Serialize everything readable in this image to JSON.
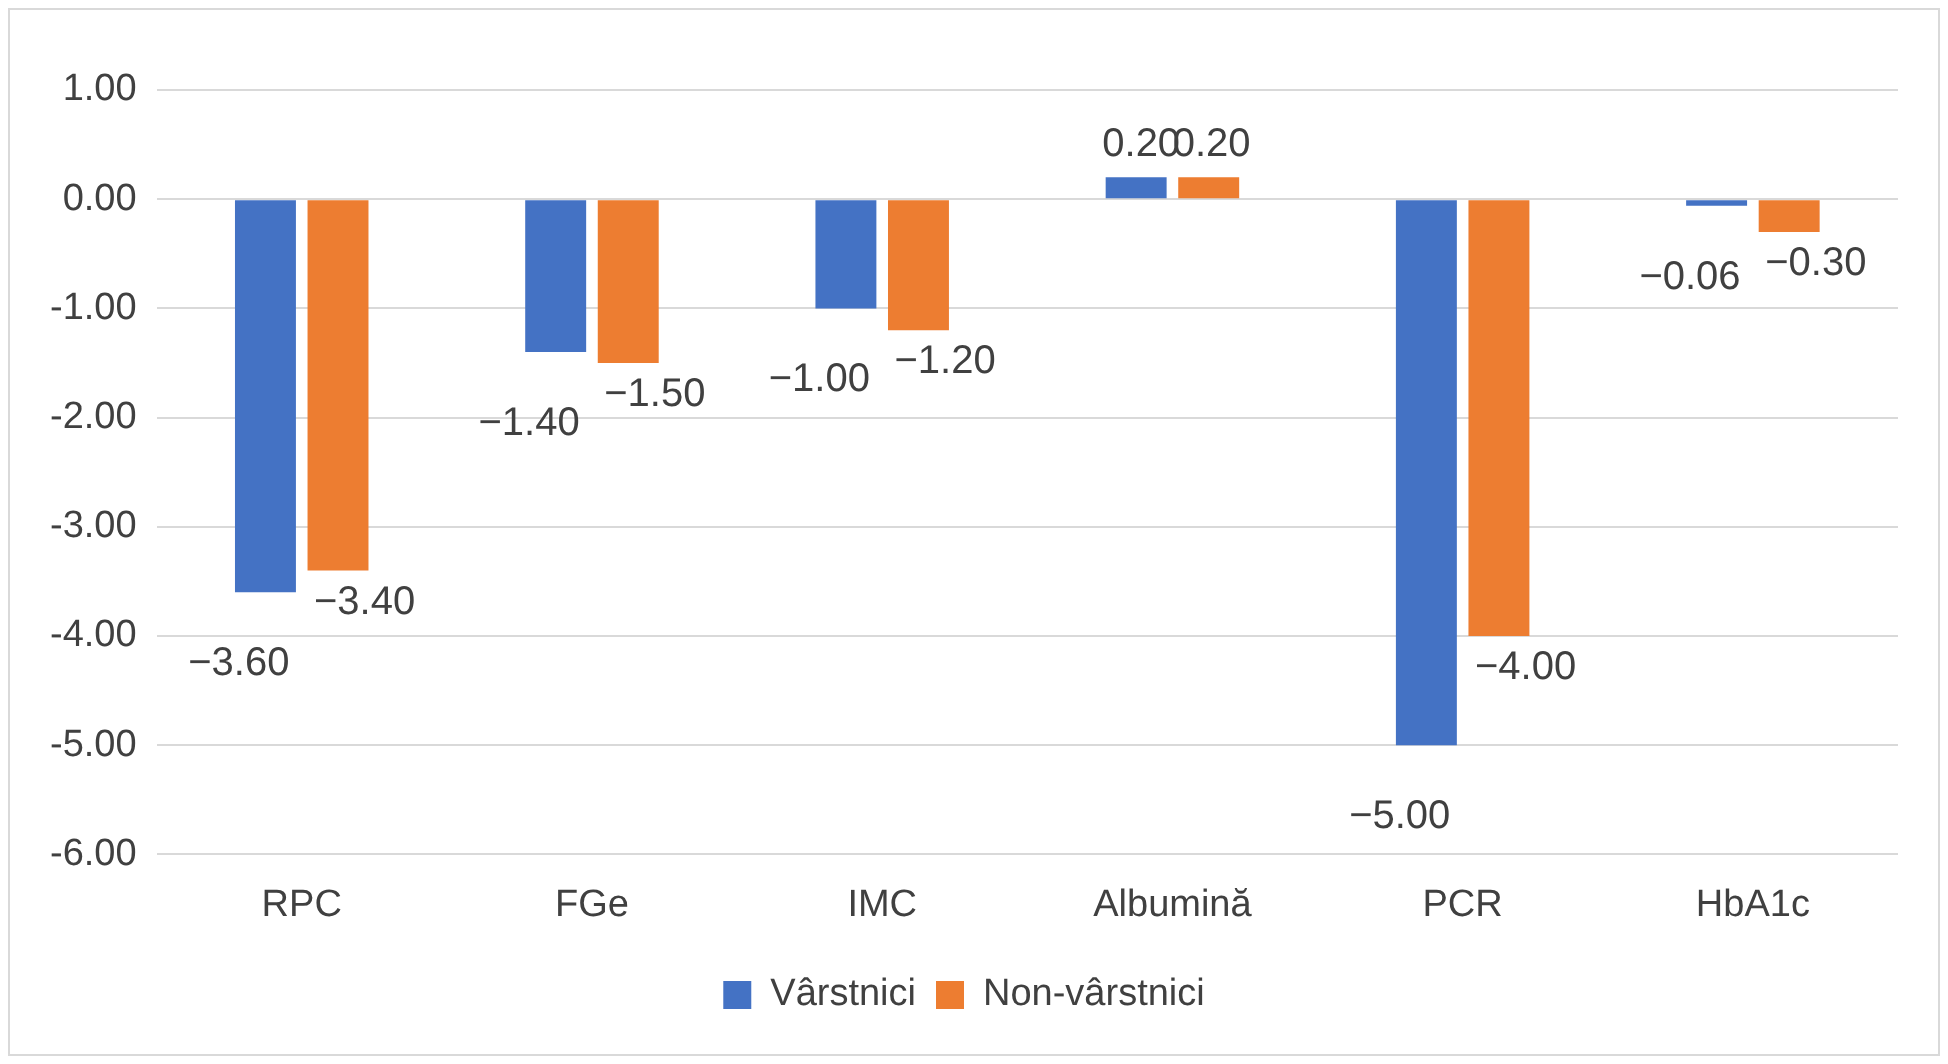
{
  "chart_data": {
    "type": "bar",
    "categories": [
      "RPC",
      "FGe",
      "IMC",
      "Albumină",
      "PCR",
      "HbA1c"
    ],
    "series": [
      {
        "name": "Vârstnici",
        "color": "#4472c4",
        "values": [
          -3.6,
          -1.4,
          -1.0,
          0.2,
          -5.0,
          -0.06
        ],
        "value_labels": [
          "−3.60",
          "−1.40",
          "−1.00",
          "0.20",
          "−5.00",
          "−0.06"
        ]
      },
      {
        "name": "Non-vârstnici",
        "color": "#ed7d31",
        "values": [
          -3.4,
          -1.5,
          -1.2,
          0.2,
          -4.0,
          -0.3
        ],
        "value_labels": [
          "−3.40",
          "−1.50",
          "−1.20",
          "0.20",
          "−4.00",
          "−0.30"
        ]
      }
    ],
    "ylim": [
      -6,
      1
    ],
    "yticks": [
      {
        "value": 1,
        "label": "1.00"
      },
      {
        "value": 0,
        "label": "0.00"
      },
      {
        "value": -1,
        "label": "-1.00"
      },
      {
        "value": -2,
        "label": "-2.00"
      },
      {
        "value": -3,
        "label": "-3.00"
      },
      {
        "value": -4,
        "label": "-4.00"
      },
      {
        "value": -5,
        "label": "-5.00"
      },
      {
        "value": -6,
        "label": "-6.00"
      }
    ],
    "grid": "y",
    "legend": "bottom"
  }
}
